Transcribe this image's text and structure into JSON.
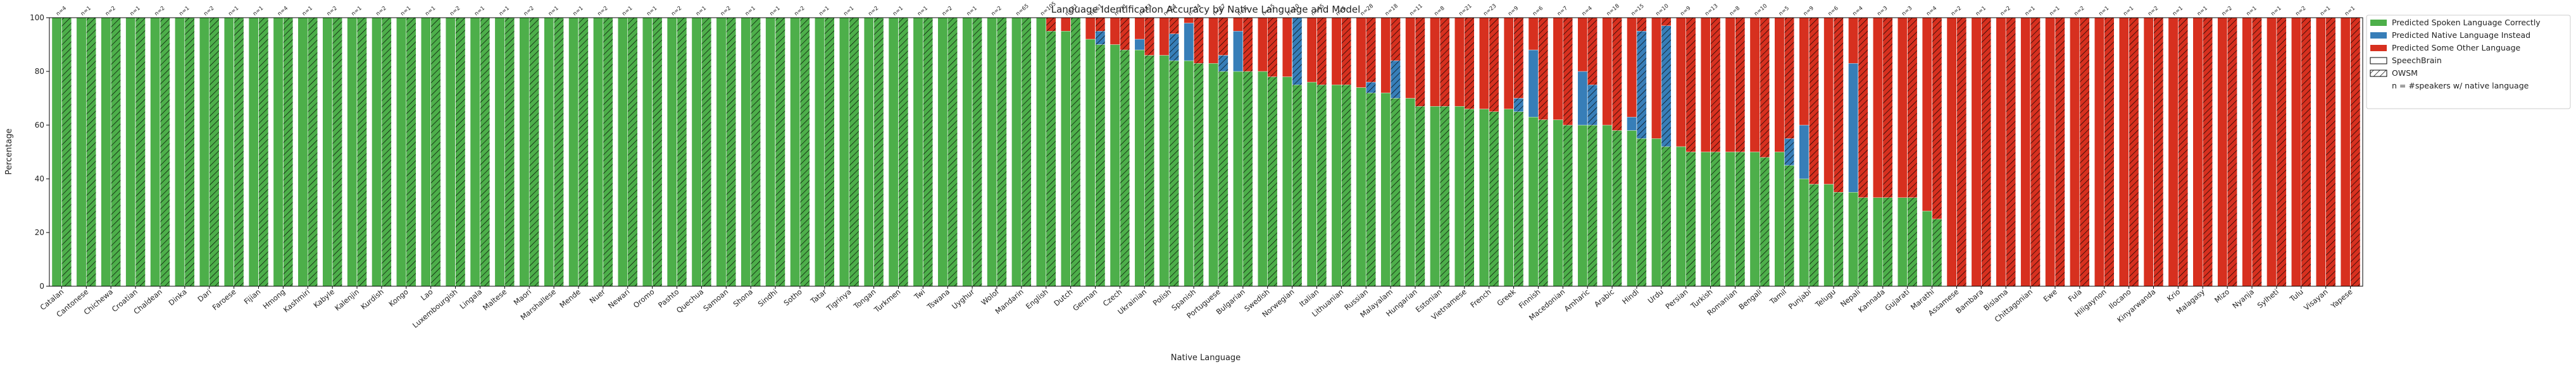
{
  "chart_data": {
    "type": "bar",
    "stacked": true,
    "title": "Language Identification Accuracy by Native Language and Model",
    "x_label": "Native Language",
    "y_label": "Percentage",
    "ylim": [
      0,
      100
    ],
    "yticks": [
      0,
      20,
      40,
      60,
      80,
      100
    ],
    "grid": false,
    "legend": "outside right",
    "note": "n = #speakers w/ native language",
    "models": [
      {
        "name": "SpeechBrain",
        "hatch": false
      },
      {
        "name": "OWSM",
        "hatch": true
      }
    ],
    "categories": [
      "Catalan",
      "Cantonese",
      "Chichewa",
      "Croatian",
      "Chaldean",
      "Dinka",
      "Dari",
      "Faroese",
      "Fijian",
      "Hmong",
      "Kashmiri",
      "Kabyle",
      "Kalenjin",
      "Kurdish",
      "Kongo",
      "Lao",
      "Luxembourgish",
      "Lingala",
      "Maltese",
      "Maori",
      "Marshallese",
      "Mende",
      "Nuer",
      "Newari",
      "Oromo",
      "Pashto",
      "Quechua",
      "Samoan",
      "Shona",
      "Sindhi",
      "Sotho",
      "Tatar",
      "Tigrinya",
      "Tongan",
      "Turkmen",
      "Twi",
      "Tswana",
      "Uyghur",
      "Wolof",
      "Mandarin",
      "English",
      "Dutch",
      "German",
      "Czech",
      "Ukrainian",
      "Polish",
      "Spanish",
      "Portuguese",
      "Bulgarian",
      "Swedish",
      "Norwegian",
      "Italian",
      "Lithuanian",
      "Russian",
      "Malayalam",
      "Hungarian",
      "Estonian",
      "Vietnamese",
      "French",
      "Greek",
      "Finnish",
      "Macedonian",
      "Amharic",
      "Arabic",
      "Hindi",
      "Urdu",
      "Persian",
      "Turkish",
      "Romanian",
      "Bengali",
      "Tamil",
      "Punjabi",
      "Telugu",
      "Nepali",
      "Kannada",
      "Gujarati",
      "Marathi",
      "Assamese",
      "Bambara",
      "Bislama",
      "Chittagonian",
      "Ewe",
      "Fula",
      "Hiligaynon",
      "Ilocano",
      "Kinyarwanda",
      "Krio",
      "Malagasy",
      "Mizo",
      "Nyanja",
      "Sylheti",
      "Tulu",
      "Visayan",
      "Yapese"
    ],
    "n_labels": [
      "n=4",
      "n=1",
      "n=2",
      "n=1",
      "n=2",
      "n=1",
      "n=2",
      "n=1",
      "n=1",
      "n=4",
      "n=1",
      "n=2",
      "n=1",
      "n=2",
      "n=1",
      "n=1",
      "n=2",
      "n=1",
      "n=1",
      "n=2",
      "n=1",
      "n=1",
      "n=2",
      "n=1",
      "n=1",
      "n=2",
      "n=1",
      "n=2",
      "n=1",
      "n=1",
      "n=2",
      "n=1",
      "n=1",
      "n=2",
      "n=1",
      "n=1",
      "n=2",
      "n=1",
      "n=2",
      "n=65",
      "n=105",
      "n=21",
      "n=51",
      "n=11",
      "n=13",
      "n=24",
      "n=74",
      "n=27",
      "n=6",
      "n=15",
      "n=10",
      "n=45",
      "n=6",
      "n=28",
      "n=18",
      "n=11",
      "n=8",
      "n=21",
      "n=23",
      "n=9",
      "n=6",
      "n=7",
      "n=4",
      "n=18",
      "n=15",
      "n=10",
      "n=9",
      "n=13",
      "n=8",
      "n=10",
      "n=5",
      "n=9",
      "n=6",
      "n=4",
      "n=3",
      "n=3",
      "n=4",
      "n=2",
      "n=1",
      "n=2",
      "n=1",
      "n=1",
      "n=2",
      "n=1",
      "n=1",
      "n=2",
      "n=1",
      "n=1",
      "n=2",
      "n=1",
      "n=1",
      "n=2",
      "n=1",
      "n=1"
    ],
    "series": [
      {
        "name": "Predicted Spoken Language Correctly",
        "color": "#4daf4a",
        "values": [
          [
            100,
            100,
            100,
            100,
            100,
            100,
            100,
            100,
            100,
            100,
            100,
            100,
            100,
            100,
            100,
            100,
            100,
            100,
            100,
            100,
            100,
            100,
            100,
            100,
            100,
            100,
            100,
            100,
            100,
            100,
            100,
            100,
            100,
            100,
            100,
            100,
            100,
            100,
            100,
            100,
            100,
            95,
            92,
            90,
            88,
            86,
            84,
            83,
            80,
            80,
            78,
            76,
            75,
            74,
            72,
            70,
            67,
            67,
            66,
            66,
            63,
            62,
            60,
            60,
            58,
            55,
            52,
            50,
            50,
            50,
            50,
            40,
            38,
            35,
            33,
            33,
            28,
            0,
            0,
            0,
            0,
            0,
            0,
            0,
            0,
            0,
            0,
            0,
            0,
            0,
            0,
            0,
            0,
            0
          ],
          [
            100,
            100,
            100,
            100,
            100,
            100,
            100,
            100,
            100,
            100,
            100,
            100,
            100,
            100,
            100,
            100,
            100,
            100,
            100,
            100,
            100,
            100,
            100,
            100,
            100,
            100,
            100,
            100,
            100,
            100,
            100,
            100,
            100,
            100,
            100,
            100,
            100,
            100,
            100,
            100,
            95,
            100,
            90,
            88,
            86,
            84,
            83,
            80,
            80,
            78,
            75,
            75,
            75,
            72,
            70,
            67,
            67,
            66,
            65,
            65,
            62,
            60,
            60,
            58,
            55,
            52,
            50,
            50,
            50,
            48,
            45,
            38,
            35,
            33,
            33,
            33,
            25,
            0,
            0,
            0,
            0,
            0,
            0,
            0,
            0,
            0,
            0,
            0,
            0,
            0,
            0,
            0,
            0,
            0
          ]
        ]
      },
      {
        "name": "Predicted Native Language Instead",
        "color": "#377eb8",
        "values": [
          [
            0,
            0,
            0,
            0,
            0,
            0,
            0,
            0,
            0,
            0,
            0,
            0,
            0,
            0,
            0,
            0,
            0,
            0,
            0,
            0,
            0,
            0,
            0,
            0,
            0,
            0,
            0,
            0,
            0,
            0,
            0,
            0,
            0,
            0,
            0,
            0,
            0,
            0,
            0,
            0,
            0,
            0,
            0,
            0,
            4,
            0,
            14,
            0,
            15,
            0,
            0,
            0,
            0,
            0,
            0,
            0,
            0,
            0,
            0,
            0,
            25,
            0,
            20,
            0,
            5,
            0,
            0,
            0,
            0,
            0,
            0,
            20,
            0,
            48,
            0,
            0,
            0,
            0,
            0,
            0,
            0,
            0,
            0,
            0,
            0,
            0,
            0,
            0,
            0,
            0,
            0,
            0,
            0,
            0
          ],
          [
            0,
            0,
            0,
            0,
            0,
            0,
            0,
            0,
            0,
            0,
            0,
            0,
            0,
            0,
            0,
            0,
            0,
            0,
            0,
            0,
            0,
            0,
            0,
            0,
            0,
            0,
            0,
            0,
            0,
            0,
            0,
            0,
            0,
            0,
            0,
            0,
            0,
            0,
            0,
            0,
            0,
            0,
            5,
            0,
            0,
            10,
            0,
            6,
            0,
            0,
            25,
            0,
            0,
            4,
            14,
            0,
            0,
            0,
            0,
            5,
            0,
            0,
            15,
            0,
            40,
            45,
            0,
            0,
            0,
            0,
            10,
            0,
            0,
            0,
            0,
            0,
            0,
            0,
            0,
            0,
            0,
            0,
            0,
            0,
            0,
            0,
            0,
            0,
            0,
            0,
            0,
            0,
            0,
            0
          ]
        ]
      },
      {
        "name": "Predicted Some Other Language",
        "color": "#d7301f",
        "values": [
          [
            0,
            0,
            0,
            0,
            0,
            0,
            0,
            0,
            0,
            0,
            0,
            0,
            0,
            0,
            0,
            0,
            0,
            0,
            0,
            0,
            0,
            0,
            0,
            0,
            0,
            0,
            0,
            0,
            0,
            0,
            0,
            0,
            0,
            0,
            0,
            0,
            0,
            0,
            0,
            0,
            0,
            5,
            8,
            10,
            8,
            14,
            2,
            17,
            5,
            20,
            22,
            24,
            25,
            26,
            28,
            30,
            33,
            33,
            34,
            34,
            12,
            38,
            20,
            40,
            37,
            45,
            48,
            50,
            50,
            50,
            50,
            40,
            62,
            17,
            67,
            67,
            72,
            100,
            100,
            100,
            100,
            100,
            100,
            100,
            100,
            100,
            100,
            100,
            100,
            100,
            100,
            100,
            100,
            100
          ],
          [
            0,
            0,
            0,
            0,
            0,
            0,
            0,
            0,
            0,
            0,
            0,
            0,
            0,
            0,
            0,
            0,
            0,
            0,
            0,
            0,
            0,
            0,
            0,
            0,
            0,
            0,
            0,
            0,
            0,
            0,
            0,
            0,
            0,
            0,
            0,
            0,
            0,
            0,
            0,
            0,
            5,
            0,
            5,
            12,
            14,
            6,
            17,
            14,
            20,
            22,
            0,
            25,
            25,
            24,
            16,
            33,
            33,
            34,
            35,
            30,
            38,
            40,
            25,
            42,
            5,
            3,
            50,
            50,
            50,
            52,
            45,
            62,
            65,
            67,
            67,
            67,
            75,
            100,
            100,
            100,
            100,
            100,
            100,
            100,
            100,
            100,
            100,
            100,
            100,
            100,
            100,
            100,
            100,
            100
          ]
        ]
      }
    ]
  }
}
